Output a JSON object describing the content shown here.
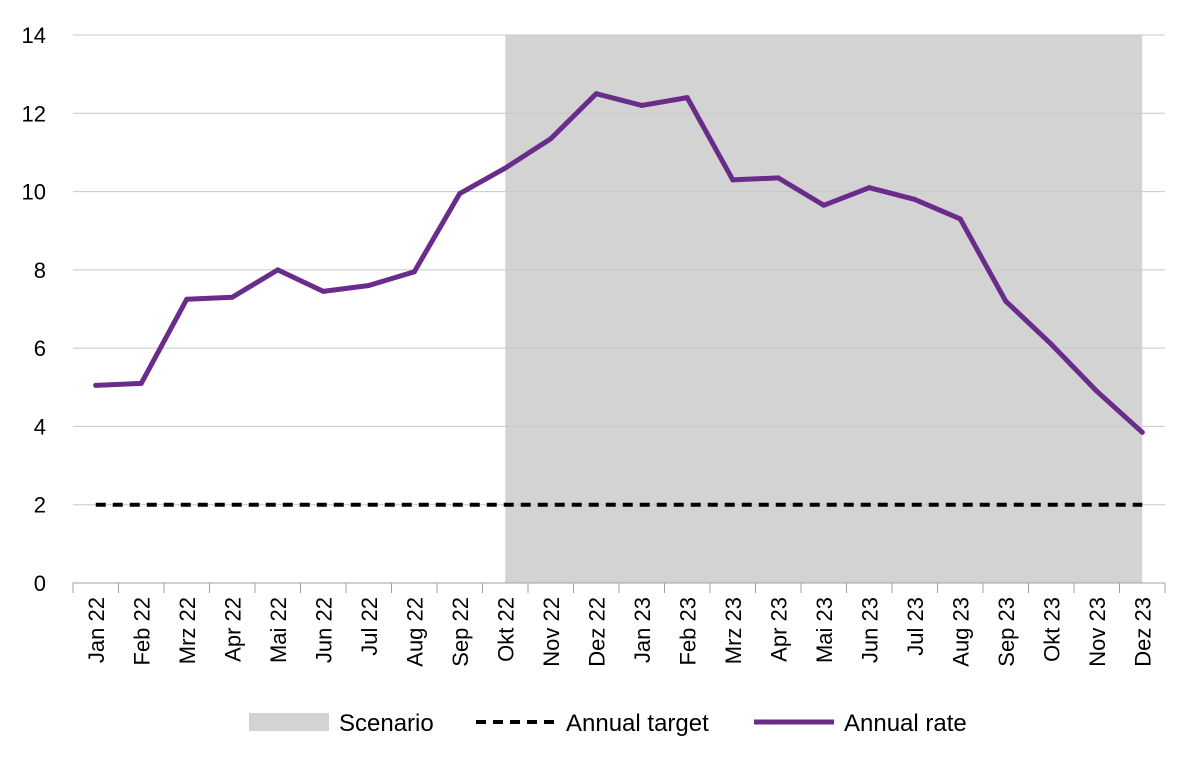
{
  "chart_data": {
    "type": "line",
    "title": "",
    "xlabel": "",
    "ylabel": "",
    "categories": [
      "Jan 22",
      "Feb 22",
      "Mrz 22",
      "Apr 22",
      "Mai 22",
      "Jun 22",
      "Jul 22",
      "Aug 22",
      "Sep 22",
      "Okt 22",
      "Nov 22",
      "Dez 22",
      "Jan 23",
      "Feb 23",
      "Mrz 23",
      "Apr 23",
      "Mai 23",
      "Jun 23",
      "Jul 23",
      "Aug 23",
      "Sep 23",
      "Okt 23",
      "Nov 23",
      "Dez 23"
    ],
    "ylim": [
      0,
      14
    ],
    "yticks": [
      0,
      2,
      4,
      6,
      8,
      10,
      12,
      14
    ],
    "grid": "horizontal",
    "legend_position": "bottom",
    "scenario": {
      "name": "Scenario",
      "start": "Okt 22",
      "end": "Dez 23",
      "color": "#d3d3d3"
    },
    "series": [
      {
        "name": "Annual target",
        "style": "dashed",
        "color": "#000000",
        "values": [
          2,
          2,
          2,
          2,
          2,
          2,
          2,
          2,
          2,
          2,
          2,
          2,
          2,
          2,
          2,
          2,
          2,
          2,
          2,
          2,
          2,
          2,
          2,
          2
        ]
      },
      {
        "name": "Annual rate",
        "style": "solid",
        "color": "#6a2c8a",
        "values": [
          5.05,
          5.1,
          7.25,
          7.3,
          8.0,
          7.45,
          7.6,
          7.95,
          9.95,
          10.6,
          11.35,
          12.5,
          12.2,
          12.4,
          10.3,
          10.35,
          9.65,
          10.1,
          9.8,
          9.3,
          7.2,
          6.1,
          4.9,
          3.85
        ]
      }
    ]
  }
}
